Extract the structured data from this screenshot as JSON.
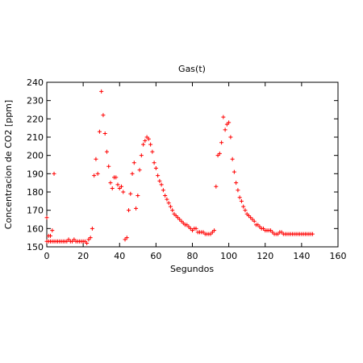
{
  "chart_data": {
    "type": "scatter",
    "title": "Gas(t)",
    "xlabel": "Segundos",
    "ylabel": "Concentracion de CO2 [ppm]",
    "xlim": [
      0,
      160
    ],
    "ylim": [
      150,
      240
    ],
    "xticks": [
      0,
      20,
      40,
      60,
      80,
      100,
      120,
      140,
      160
    ],
    "yticks": [
      150,
      160,
      170,
      180,
      190,
      200,
      210,
      220,
      230,
      240
    ],
    "xtick_labels": [
      "0",
      "20",
      "40",
      "60",
      "80",
      "100",
      "120",
      "140",
      "160"
    ],
    "ytick_labels": [
      "150",
      "160",
      "170",
      "180",
      "190",
      "200",
      "210",
      "220",
      "230",
      "240"
    ],
    "grid": false,
    "marker": "+",
    "color": "#ff0000",
    "x": [
      0,
      0,
      1,
      1,
      2,
      2,
      3,
      3,
      4,
      4,
      5,
      6,
      7,
      8,
      9,
      10,
      11,
      12,
      13,
      14,
      15,
      16,
      17,
      18,
      19,
      20,
      21,
      22,
      23,
      24,
      25,
      26,
      27,
      28,
      29,
      30,
      31,
      32,
      33,
      34,
      35,
      36,
      37,
      38,
      39,
      40,
      41,
      42,
      43,
      44,
      45,
      46,
      47,
      48,
      49,
      50,
      51,
      52,
      53,
      54,
      55,
      56,
      57,
      58,
      59,
      60,
      61,
      62,
      63,
      64,
      65,
      66,
      67,
      68,
      69,
      70,
      71,
      72,
      73,
      74,
      75,
      76,
      77,
      78,
      79,
      80,
      81,
      82,
      83,
      84,
      85,
      86,
      87,
      88,
      89,
      90,
      91,
      92,
      93,
      94,
      95,
      96,
      97,
      98,
      99,
      100,
      101,
      102,
      103,
      104,
      105,
      106,
      107,
      108,
      109,
      110,
      111,
      112,
      113,
      114,
      115,
      116,
      117,
      118,
      119,
      120,
      121,
      122,
      123,
      124,
      125,
      126,
      127,
      128,
      129,
      130,
      131,
      132,
      133,
      134,
      135,
      136,
      137,
      138,
      139,
      140,
      141,
      142,
      143,
      144,
      145,
      146
    ],
    "y": [
      166,
      153,
      156,
      153,
      156,
      153,
      159,
      153,
      190,
      153,
      153,
      153,
      153,
      153,
      153,
      153,
      153,
      154,
      153,
      153,
      154,
      153,
      153,
      153,
      153,
      153,
      153,
      152,
      154,
      155,
      160,
      189,
      198,
      190,
      213,
      235,
      222,
      212,
      202,
      194,
      185,
      182,
      188,
      188,
      184,
      182,
      183,
      180,
      154,
      155,
      170,
      179,
      190,
      196,
      171,
      178,
      192,
      200,
      206,
      208,
      210,
      209,
      206,
      202,
      196,
      193,
      189,
      186,
      184,
      181,
      178,
      176,
      174,
      172,
      170,
      168,
      167,
      166,
      165,
      164,
      163,
      162,
      162,
      161,
      160,
      159,
      160,
      160,
      158,
      158,
      158,
      158,
      157,
      157,
      157,
      157,
      158,
      159,
      183,
      200,
      201,
      207,
      221,
      214,
      217,
      218,
      210,
      198,
      191,
      185,
      181,
      177,
      175,
      172,
      170,
      168,
      167,
      166,
      165,
      164,
      162,
      162,
      161,
      160,
      160,
      159,
      159,
      159,
      159,
      158,
      157,
      157,
      157,
      158,
      158,
      157,
      157,
      157,
      157,
      157,
      157,
      157,
      157,
      157,
      157,
      157,
      157,
      157,
      157,
      157,
      157,
      157
    ]
  }
}
